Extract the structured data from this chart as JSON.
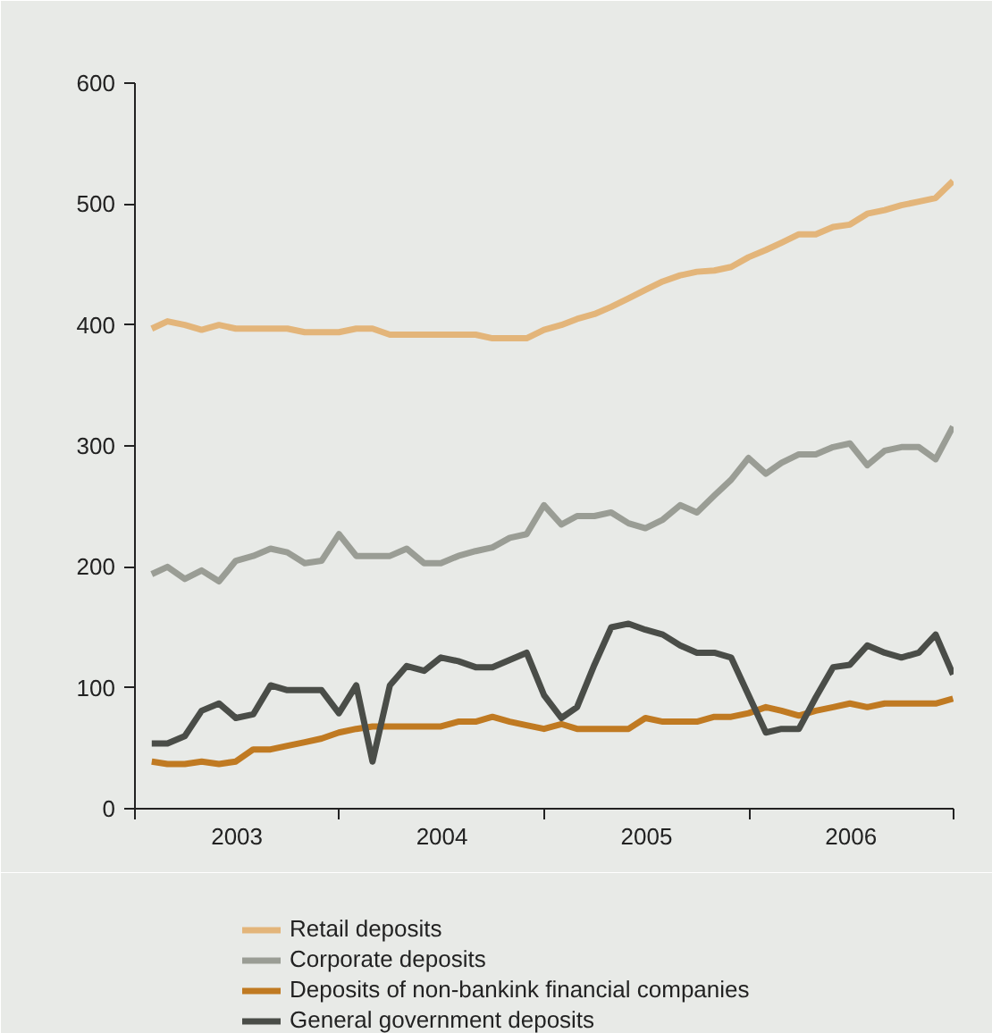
{
  "chart_data": {
    "type": "line",
    "x": [
      "2003-01-31",
      "2003-02-28",
      "2003-03-31",
      "2003-04-30",
      "2003-05-31",
      "2003-06-30",
      "2003-07-31",
      "2003-08-31",
      "2003-09-30",
      "2003-10-31",
      "2003-11-30",
      "2003-12-31",
      "2004-01-31",
      "2004-02-29",
      "2004-03-31",
      "2004-04-30",
      "2004-05-31",
      "2004-06-30",
      "2004-07-31",
      "2004-08-31",
      "2004-09-30",
      "2004-10-31",
      "2004-11-30",
      "2004-12-31",
      "2005-01-31",
      "2005-02-28",
      "2005-03-31",
      "2005-04-30",
      "2005-05-31",
      "2005-06-30",
      "2005-07-31",
      "2005-08-31",
      "2005-09-30",
      "2005-10-31",
      "2005-11-30",
      "2005-12-31",
      "2006-01-31",
      "2006-02-28",
      "2006-03-31",
      "2006-04-30",
      "2006-05-31",
      "2006-06-30",
      "2006-07-31",
      "2006-08-31",
      "2006-09-30",
      "2006-10-31",
      "2006-11-30",
      "2006-12-31"
    ],
    "series": [
      {
        "name": "Retail deposits",
        "color": "#e3b57a",
        "values": [
          397,
          403,
          400,
          396,
          400,
          397,
          397,
          397,
          397,
          394,
          394,
          394,
          397,
          397,
          392,
          392,
          392,
          392,
          392,
          392,
          389,
          389,
          389,
          396,
          400,
          405,
          409,
          415,
          422,
          429,
          436,
          441,
          444,
          445,
          448,
          456,
          462,
          468,
          475,
          475,
          481,
          483,
          492,
          495,
          499,
          502,
          505,
          519
        ]
      },
      {
        "name": "Corporate deposits",
        "color": "#9a9d95",
        "values": [
          194,
          200,
          190,
          197,
          188,
          205,
          209,
          215,
          212,
          203,
          205,
          227,
          209,
          209,
          209,
          215,
          203,
          203,
          209,
          213,
          216,
          224,
          227,
          251,
          235,
          242,
          242,
          245,
          236,
          232,
          239,
          251,
          245,
          259,
          272,
          290,
          277,
          286,
          293,
          293,
          299,
          302,
          284,
          296,
          299,
          299,
          289,
          316
        ]
      },
      {
        "name": "Deposits of non-bankink financial companies",
        "color": "#c07a22",
        "values": [
          39,
          37,
          37,
          39,
          37,
          39,
          49,
          49,
          52,
          55,
          58,
          63,
          66,
          68,
          68,
          68,
          68,
          68,
          72,
          72,
          76,
          72,
          69,
          66,
          70,
          66,
          66,
          66,
          66,
          75,
          72,
          72,
          72,
          76,
          76,
          79,
          84,
          81,
          77,
          81,
          84,
          87,
          84,
          87,
          87,
          87,
          87,
          91
        ]
      },
      {
        "name": "General government deposits",
        "color": "#4a4d48",
        "values": [
          54,
          54,
          60,
          81,
          87,
          75,
          78,
          102,
          98,
          98,
          98,
          79,
          102,
          39,
          102,
          118,
          114,
          125,
          122,
          117,
          117,
          123,
          129,
          94,
          75,
          84,
          119,
          150,
          153,
          148,
          144,
          135,
          129,
          129,
          125,
          94,
          63,
          66,
          66,
          92,
          117,
          119,
          135,
          129,
          125,
          129,
          144,
          111
        ]
      }
    ],
    "xlim": [
      "2003-01-01",
      "2007-01-01"
    ],
    "xticks": [
      {
        "value": "2003-01-01",
        "label": null
      },
      {
        "value": "2003-07-02",
        "label": "2003"
      },
      {
        "value": "2004-01-01",
        "label": null
      },
      {
        "value": "2004-07-02",
        "label": "2004"
      },
      {
        "value": "2005-01-01",
        "label": null
      },
      {
        "value": "2005-07-02",
        "label": "2005"
      },
      {
        "value": "2006-01-01",
        "label": null
      },
      {
        "value": "2006-07-02",
        "label": "2006"
      },
      {
        "value": "2007-01-01",
        "label": null
      }
    ],
    "ylim": [
      0,
      600
    ],
    "yticks": [
      0,
      100,
      200,
      300,
      400,
      500,
      600
    ],
    "legend": "bottom",
    "marker": "none",
    "line_style": "solid"
  }
}
